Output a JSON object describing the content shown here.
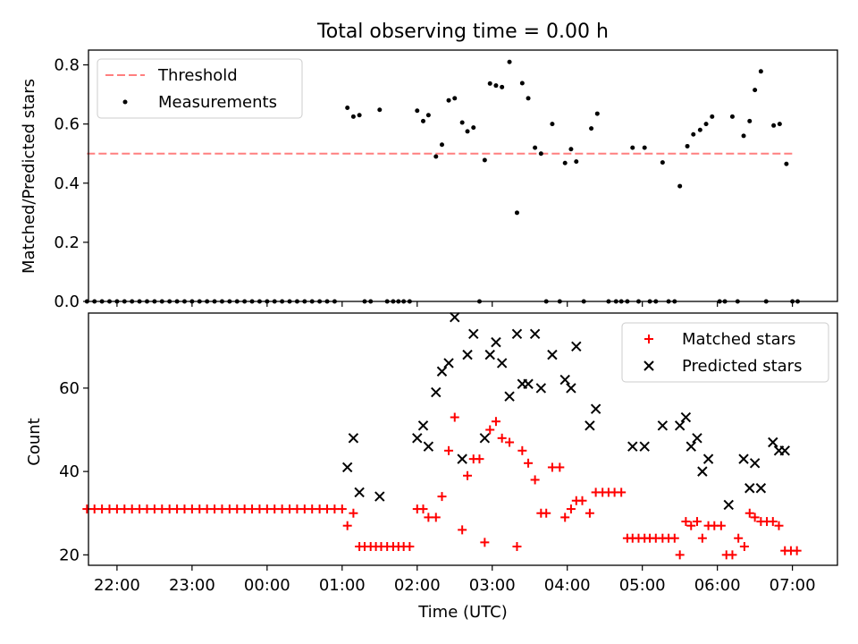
{
  "title": "Total observing time = 0.00 h",
  "chart_data": [
    {
      "type": "scatter",
      "ylabel": "Matched/Predicted stars",
      "ylim": [
        0,
        0.85
      ],
      "yticks": [
        "0.0",
        "0.2",
        "0.4",
        "0.6",
        "0.8"
      ],
      "yticks_values": [
        0,
        0.2,
        0.4,
        0.6,
        0.8
      ],
      "xlim": [
        -2.38,
        7.6
      ],
      "legend_position": "upper-left",
      "threshold": {
        "name": "Threshold",
        "value": 0.5,
        "x_start": -2.4,
        "x_end": 7.0,
        "color": "#ff7f7f"
      },
      "series": [
        {
          "name": "Measurements",
          "color": "#000000",
          "points": [
            [
              -2.4,
              0
            ],
            [
              -2.3,
              0
            ],
            [
              -2.2,
              0
            ],
            [
              -2.1,
              0
            ],
            [
              -2.0,
              0
            ],
            [
              -1.9,
              0
            ],
            [
              -1.8,
              0
            ],
            [
              -1.7,
              0
            ],
            [
              -1.6,
              0
            ],
            [
              -1.5,
              0
            ],
            [
              -1.4,
              0
            ],
            [
              -1.3,
              0
            ],
            [
              -1.2,
              0
            ],
            [
              -1.1,
              0
            ],
            [
              -1.0,
              0
            ],
            [
              -0.9,
              0
            ],
            [
              -0.8,
              0
            ],
            [
              -0.7,
              0
            ],
            [
              -0.6,
              0
            ],
            [
              -0.5,
              0
            ],
            [
              -0.4,
              0
            ],
            [
              -0.3,
              0
            ],
            [
              -0.2,
              0
            ],
            [
              -0.1,
              0
            ],
            [
              0.0,
              0
            ],
            [
              0.1,
              0
            ],
            [
              0.2,
              0
            ],
            [
              0.3,
              0
            ],
            [
              0.4,
              0
            ],
            [
              0.5,
              0
            ],
            [
              0.6,
              0
            ],
            [
              0.7,
              0
            ],
            [
              0.8,
              0
            ],
            [
              0.9,
              0
            ],
            [
              1.07,
              0.655
            ],
            [
              1.15,
              0.625
            ],
            [
              1.23,
              0.63
            ],
            [
              1.3,
              0
            ],
            [
              1.38,
              0
            ],
            [
              1.5,
              0.648
            ],
            [
              1.6,
              0
            ],
            [
              1.68,
              0
            ],
            [
              1.75,
              0
            ],
            [
              1.82,
              0
            ],
            [
              1.9,
              0
            ],
            [
              2.0,
              0.645
            ],
            [
              2.08,
              0.61
            ],
            [
              2.15,
              0.63
            ],
            [
              2.25,
              0.49
            ],
            [
              2.33,
              0.53
            ],
            [
              2.42,
              0.68
            ],
            [
              2.5,
              0.687
            ],
            [
              2.6,
              0.605
            ],
            [
              2.67,
              0.575
            ],
            [
              2.75,
              0.588
            ],
            [
              2.83,
              0
            ],
            [
              2.9,
              0.478
            ],
            [
              2.97,
              0.737
            ],
            [
              3.05,
              0.73
            ],
            [
              3.13,
              0.725
            ],
            [
              3.23,
              0.81
            ],
            [
              3.33,
              0.3
            ],
            [
              3.4,
              0.738
            ],
            [
              3.48,
              0.687
            ],
            [
              3.57,
              0.52
            ],
            [
              3.65,
              0.5
            ],
            [
              3.72,
              0
            ],
            [
              3.8,
              0.6
            ],
            [
              3.9,
              0
            ],
            [
              3.97,
              0.468
            ],
            [
              4.05,
              0.515
            ],
            [
              4.12,
              0.473
            ],
            [
              4.22,
              0
            ],
            [
              4.32,
              0.585
            ],
            [
              4.4,
              0.635
            ],
            [
              4.55,
              0
            ],
            [
              4.65,
              0
            ],
            [
              4.72,
              0
            ],
            [
              4.8,
              0
            ],
            [
              4.87,
              0.52
            ],
            [
              4.95,
              0
            ],
            [
              5.03,
              0.52
            ],
            [
              5.1,
              0
            ],
            [
              5.18,
              0
            ],
            [
              5.27,
              0.47
            ],
            [
              5.35,
              0
            ],
            [
              5.43,
              0
            ],
            [
              5.5,
              0.39
            ],
            [
              5.6,
              0.525
            ],
            [
              5.68,
              0.565
            ],
            [
              5.77,
              0.58
            ],
            [
              5.85,
              0.6
            ],
            [
              5.93,
              0.625
            ],
            [
              6.03,
              0
            ],
            [
              6.1,
              0
            ],
            [
              6.2,
              0.625
            ],
            [
              6.27,
              0
            ],
            [
              6.35,
              0.56
            ],
            [
              6.43,
              0.61
            ],
            [
              6.5,
              0.715
            ],
            [
              6.58,
              0.778
            ],
            [
              6.65,
              0
            ],
            [
              6.75,
              0.595
            ],
            [
              6.83,
              0.6
            ],
            [
              6.92,
              0.465
            ],
            [
              7.0,
              0
            ],
            [
              7.07,
              0
            ]
          ]
        }
      ]
    },
    {
      "type": "scatter",
      "ylabel": "Count",
      "xlabel": "Time (UTC)",
      "ylim": [
        17.5,
        78
      ],
      "yticks": [
        "20",
        "40",
        "60"
      ],
      "yticks_values": [
        20,
        40,
        60
      ],
      "xlim": [
        -2.38,
        7.6
      ],
      "xticks": [
        "22:00",
        "23:00",
        "00:00",
        "01:00",
        "02:00",
        "03:00",
        "04:00",
        "05:00",
        "06:00",
        "07:00"
      ],
      "xticks_values": [
        -2,
        -1,
        0,
        1,
        2,
        3,
        4,
        5,
        6,
        7
      ],
      "legend_position": "upper-right",
      "series": [
        {
          "name": "Matched stars",
          "marker": "plus",
          "color": "#ff0000",
          "points": [
            [
              -2.4,
              31
            ],
            [
              -2.3,
              31
            ],
            [
              -2.2,
              31
            ],
            [
              -2.1,
              31
            ],
            [
              -2.0,
              31
            ],
            [
              -1.9,
              31
            ],
            [
              -1.8,
              31
            ],
            [
              -1.7,
              31
            ],
            [
              -1.6,
              31
            ],
            [
              -1.5,
              31
            ],
            [
              -1.4,
              31
            ],
            [
              -1.3,
              31
            ],
            [
              -1.2,
              31
            ],
            [
              -1.1,
              31
            ],
            [
              -1.0,
              31
            ],
            [
              -0.9,
              31
            ],
            [
              -0.8,
              31
            ],
            [
              -0.7,
              31
            ],
            [
              -0.6,
              31
            ],
            [
              -0.5,
              31
            ],
            [
              -0.4,
              31
            ],
            [
              -0.3,
              31
            ],
            [
              -0.2,
              31
            ],
            [
              -0.1,
              31
            ],
            [
              0.0,
              31
            ],
            [
              0.1,
              31
            ],
            [
              0.2,
              31
            ],
            [
              0.3,
              31
            ],
            [
              0.4,
              31
            ],
            [
              0.5,
              31
            ],
            [
              0.6,
              31
            ],
            [
              0.7,
              31
            ],
            [
              0.8,
              31
            ],
            [
              0.9,
              31
            ],
            [
              1.0,
              31
            ],
            [
              1.07,
              27
            ],
            [
              1.15,
              30
            ],
            [
              1.23,
              22
            ],
            [
              1.3,
              22
            ],
            [
              1.38,
              22
            ],
            [
              1.45,
              22
            ],
            [
              1.52,
              22
            ],
            [
              1.6,
              22
            ],
            [
              1.68,
              22
            ],
            [
              1.75,
              22
            ],
            [
              1.82,
              22
            ],
            [
              1.9,
              22
            ],
            [
              2.0,
              31
            ],
            [
              2.08,
              31
            ],
            [
              2.15,
              29
            ],
            [
              2.25,
              29
            ],
            [
              2.33,
              34
            ],
            [
              2.42,
              45
            ],
            [
              2.5,
              53
            ],
            [
              2.6,
              26
            ],
            [
              2.67,
              39
            ],
            [
              2.75,
              43
            ],
            [
              2.83,
              43
            ],
            [
              2.9,
              23
            ],
            [
              2.97,
              50
            ],
            [
              3.05,
              52
            ],
            [
              3.13,
              48
            ],
            [
              3.23,
              47
            ],
            [
              3.33,
              22
            ],
            [
              3.4,
              45
            ],
            [
              3.48,
              42
            ],
            [
              3.57,
              38
            ],
            [
              3.65,
              30
            ],
            [
              3.72,
              30
            ],
            [
              3.8,
              41
            ],
            [
              3.9,
              41
            ],
            [
              3.97,
              29
            ],
            [
              4.05,
              31
            ],
            [
              4.12,
              33
            ],
            [
              4.2,
              33
            ],
            [
              4.3,
              30
            ],
            [
              4.38,
              35
            ],
            [
              4.47,
              35
            ],
            [
              4.55,
              35
            ],
            [
              4.63,
              35
            ],
            [
              4.72,
              35
            ],
            [
              4.8,
              24
            ],
            [
              4.87,
              24
            ],
            [
              4.95,
              24
            ],
            [
              5.03,
              24
            ],
            [
              5.1,
              24
            ],
            [
              5.18,
              24
            ],
            [
              5.27,
              24
            ],
            [
              5.35,
              24
            ],
            [
              5.43,
              24
            ],
            [
              5.5,
              20
            ],
            [
              5.58,
              28
            ],
            [
              5.65,
              27
            ],
            [
              5.73,
              28
            ],
            [
              5.8,
              24
            ],
            [
              5.88,
              27
            ],
            [
              5.96,
              27
            ],
            [
              6.05,
              27
            ],
            [
              6.12,
              20
            ],
            [
              6.2,
              20
            ],
            [
              6.28,
              24
            ],
            [
              6.36,
              22
            ],
            [
              6.43,
              30
            ],
            [
              6.5,
              29
            ],
            [
              6.58,
              28
            ],
            [
              6.66,
              28
            ],
            [
              6.74,
              28
            ],
            [
              6.82,
              27
            ],
            [
              6.9,
              21
            ],
            [
              6.98,
              21
            ],
            [
              7.06,
              21
            ]
          ]
        },
        {
          "name": "Predicted stars",
          "marker": "x",
          "color": "#000000",
          "points": [
            [
              1.07,
              41
            ],
            [
              1.15,
              48
            ],
            [
              1.23,
              35
            ],
            [
              1.5,
              34
            ],
            [
              2.0,
              48
            ],
            [
              2.08,
              51
            ],
            [
              2.15,
              46
            ],
            [
              2.25,
              59
            ],
            [
              2.33,
              64
            ],
            [
              2.42,
              66
            ],
            [
              2.5,
              77
            ],
            [
              2.6,
              43
            ],
            [
              2.67,
              68
            ],
            [
              2.75,
              73
            ],
            [
              2.9,
              48
            ],
            [
              2.97,
              68
            ],
            [
              3.05,
              71
            ],
            [
              3.13,
              66
            ],
            [
              3.23,
              58
            ],
            [
              3.33,
              73
            ],
            [
              3.4,
              61
            ],
            [
              3.48,
              61
            ],
            [
              3.57,
              73
            ],
            [
              3.65,
              60
            ],
            [
              3.8,
              68
            ],
            [
              3.97,
              62
            ],
            [
              4.05,
              60
            ],
            [
              4.12,
              70
            ],
            [
              4.3,
              51
            ],
            [
              4.38,
              55
            ],
            [
              4.87,
              46
            ],
            [
              5.03,
              46
            ],
            [
              5.27,
              51
            ],
            [
              5.5,
              51
            ],
            [
              5.58,
              53
            ],
            [
              5.65,
              46
            ],
            [
              5.73,
              48
            ],
            [
              5.8,
              40
            ],
            [
              5.88,
              43
            ],
            [
              6.15,
              32
            ],
            [
              6.35,
              43
            ],
            [
              6.43,
              36
            ],
            [
              6.5,
              42
            ],
            [
              6.58,
              36
            ],
            [
              6.74,
              47
            ],
            [
              6.82,
              45
            ],
            [
              6.9,
              45
            ]
          ]
        }
      ]
    }
  ]
}
